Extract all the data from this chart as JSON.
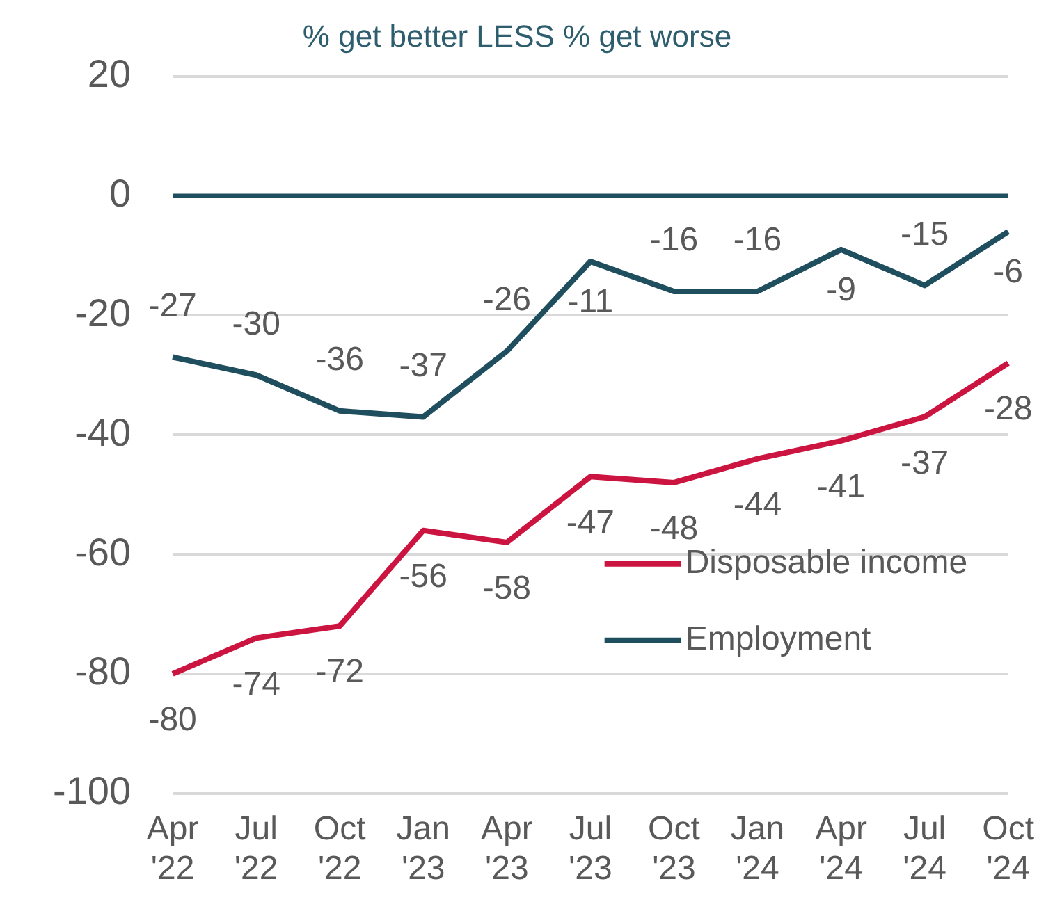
{
  "chart_data": {
    "type": "line",
    "subtitle": "% get better LESS % get worse",
    "categories": [
      "Apr '22",
      "Jul '22",
      "Oct '22",
      "Jan '23",
      "Apr '23",
      "Jul '23",
      "Oct '23",
      "Jan '24",
      "Apr '24",
      "Jul '24",
      "Oct '24"
    ],
    "series": [
      {
        "name": "Disposable income",
        "color": "#cc1440",
        "values": [
          -80,
          -74,
          -72,
          -56,
          -58,
          -47,
          -48,
          -44,
          -41,
          -37,
          -28
        ]
      },
      {
        "name": "Employment",
        "color": "#1f4f5e",
        "values": [
          -27,
          -30,
          -36,
          -37,
          -26,
          -11,
          -16,
          -16,
          -9,
          -15,
          -6
        ]
      }
    ],
    "ylim": [
      -100,
      20
    ],
    "yticks": [
      -100,
      -80,
      -60,
      -40,
      -20,
      0,
      20
    ],
    "grid": "y",
    "legend": "bottom right",
    "data_labels": true,
    "marker": "none",
    "line_style": "solid",
    "ref_lines": [
      {
        "axis": "y",
        "value": 0,
        "color": "#1f4f5e",
        "line_style": "solid"
      }
    ]
  }
}
